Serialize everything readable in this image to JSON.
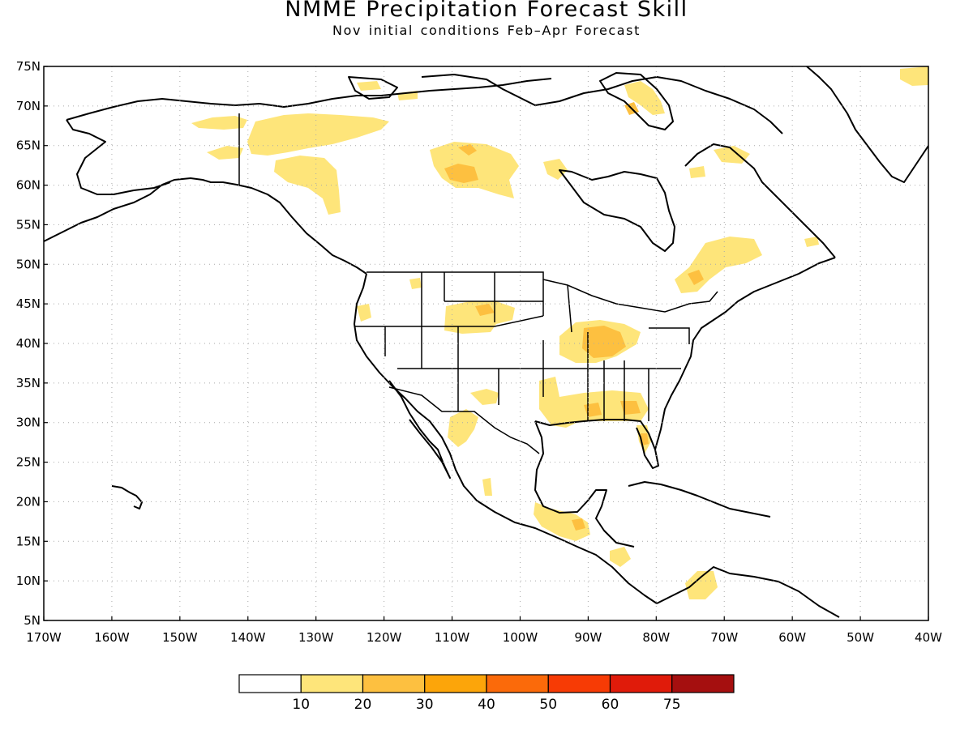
{
  "title": "NMME Precipitation Forecast Skill",
  "subtitle": "Nov initial conditions   Feb–Apr Forecast",
  "map": {
    "lon_range": [
      -170,
      -40
    ],
    "lat_range": [
      5,
      75
    ],
    "lon_ticks": [
      "170W",
      "160W",
      "150W",
      "140W",
      "130W",
      "120W",
      "110W",
      "100W",
      "90W",
      "80W",
      "70W",
      "60W",
      "50W",
      "40W"
    ],
    "lat_ticks": [
      "5N",
      "10N",
      "15N",
      "20N",
      "25N",
      "30N",
      "35N",
      "40N",
      "45N",
      "50N",
      "55N",
      "60N",
      "65N",
      "70N",
      "75N"
    ],
    "grid": "dotted"
  },
  "legend": {
    "labels": [
      "10",
      "20",
      "30",
      "40",
      "50",
      "60",
      "75"
    ],
    "colors": [
      "#ffffff",
      "#fee57a",
      "#fdc040",
      "#fca50a",
      "#fb6a0a",
      "#f73b05",
      "#e01b0a",
      "#a50f0f"
    ]
  },
  "colors": {
    "outline": "#000000",
    "grid": "#aaaaaa",
    "skill_10_20": "#fee57a",
    "skill_20_30": "#fdc040"
  }
}
